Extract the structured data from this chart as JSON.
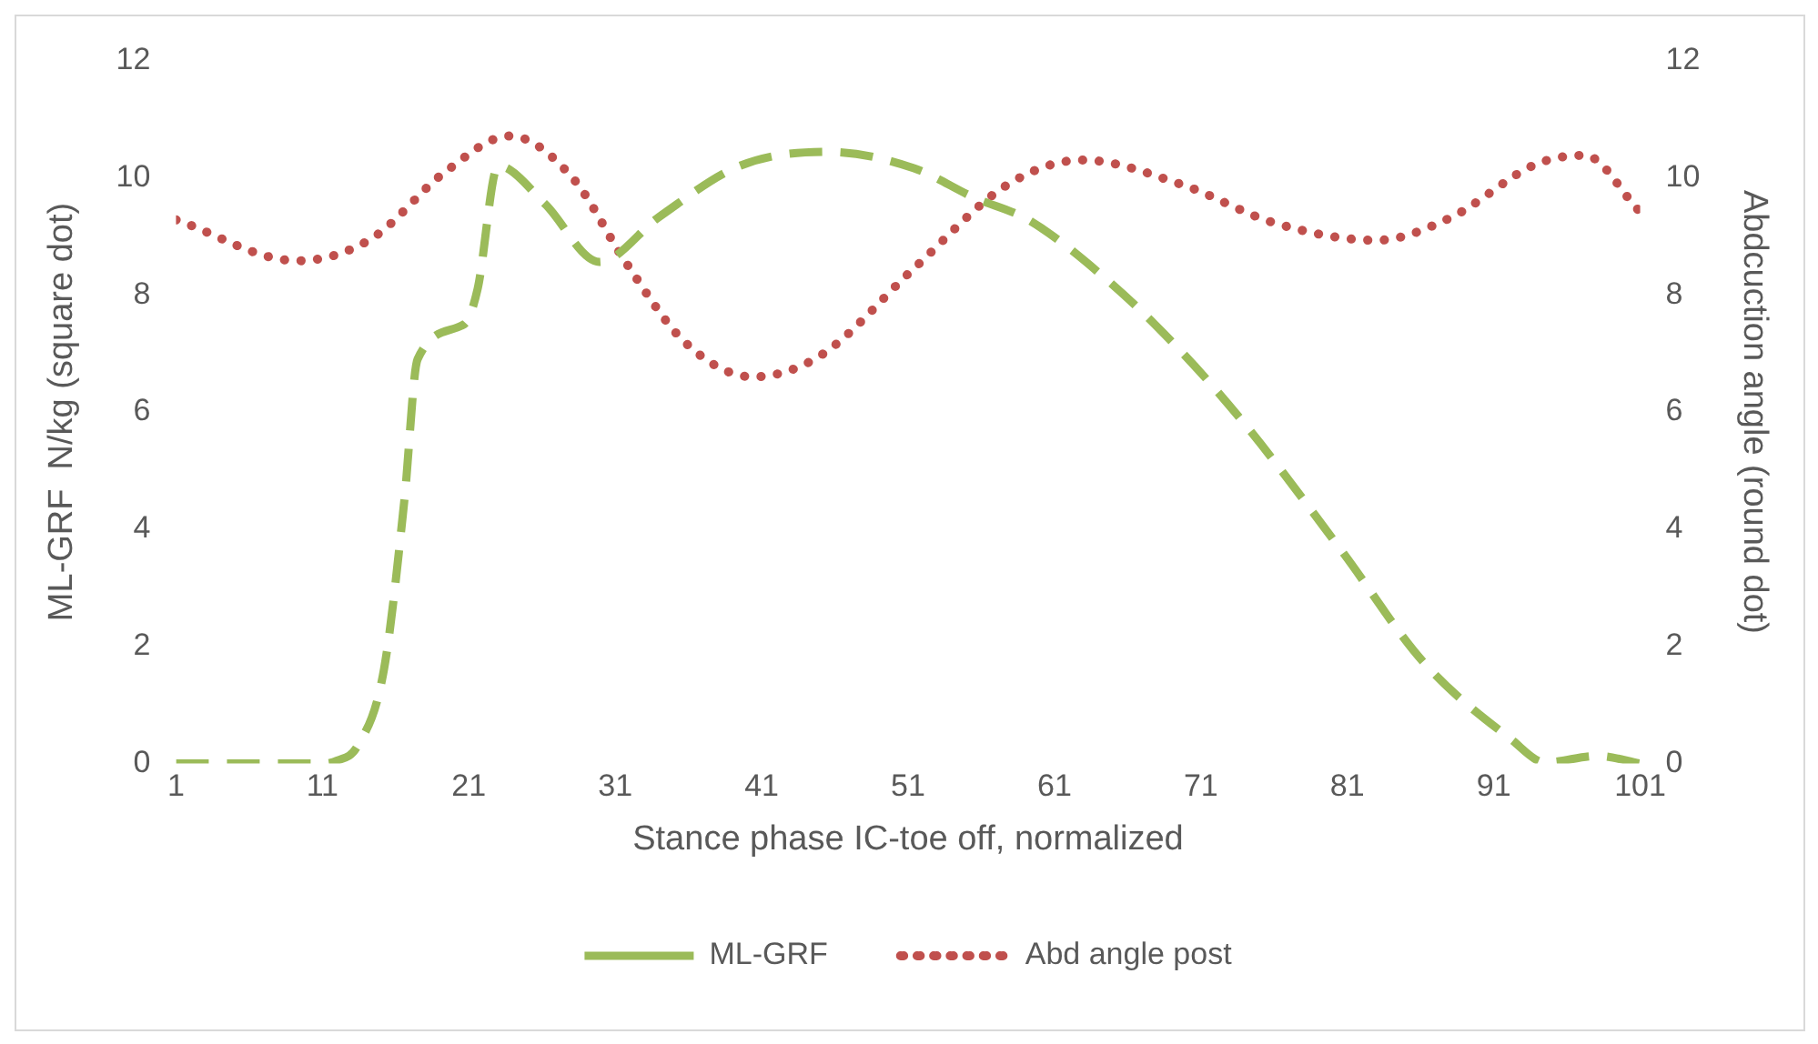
{
  "chart_data": {
    "type": "line",
    "xlabel": "Stance phase IC-toe off, normalized",
    "ylabel": "ML-GRF  N/kg (square dot)",
    "y2label": "Abdcuction angle (round dot)",
    "xlim": [
      1,
      101
    ],
    "xticks": [
      1,
      11,
      21,
      31,
      41,
      51,
      61,
      71,
      81,
      91,
      101
    ],
    "ylim": [
      0,
      12
    ],
    "yticks": [
      0,
      2,
      4,
      6,
      8,
      10,
      12
    ],
    "y2lim": [
      0,
      12
    ],
    "y2ticks": [
      0,
      2,
      4,
      6,
      8,
      10,
      12
    ],
    "grid": false,
    "legend": "bottom",
    "marker": "none",
    "series": [
      {
        "name": "ML-GRF",
        "color": "#9bbb59",
        "line_style": "dashed",
        "x": [
          1,
          11,
          12,
          13.4,
          15.2,
          16.6,
          17.5,
          20.7,
          21.6,
          23,
          26.2,
          29.9,
          34,
          39.5,
          45.5,
          51.4,
          55.5,
          59.2,
          64.7,
          69.7,
          74.3,
          80.7,
          86.2,
          92.2,
          94.5,
          98.1,
          101
        ],
        "values": [
          0,
          0,
          0.05,
          0.3,
          1.6,
          4.5,
          6.9,
          7.5,
          8.1,
          10.2,
          9.55,
          8.56,
          9.33,
          10.2,
          10.44,
          10.16,
          9.66,
          9.28,
          8.23,
          7.02,
          5.7,
          3.6,
          1.73,
          0.41,
          0.02,
          0.13,
          0
        ]
      },
      {
        "name": "Abd angle post",
        "color": "#c0504d",
        "line_style": "dotted",
        "axis": "y2",
        "x": [
          1,
          9.3,
          14.3,
          19.4,
          23.8,
          28.1,
          31.7,
          35.8,
          40.4,
          45,
          51.4,
          57.8,
          62.9,
          69.7,
          76.1,
          83,
          88,
          94,
          97.2,
          100.9
        ],
        "values": [
          9.28,
          8.58,
          8.95,
          10.1,
          10.71,
          9.99,
          8.56,
          7.18,
          6.6,
          6.96,
          8.45,
          9.88,
          10.3,
          9.88,
          9.22,
          8.93,
          9.31,
          10.24,
          10.38,
          9.44
        ]
      }
    ]
  }
}
